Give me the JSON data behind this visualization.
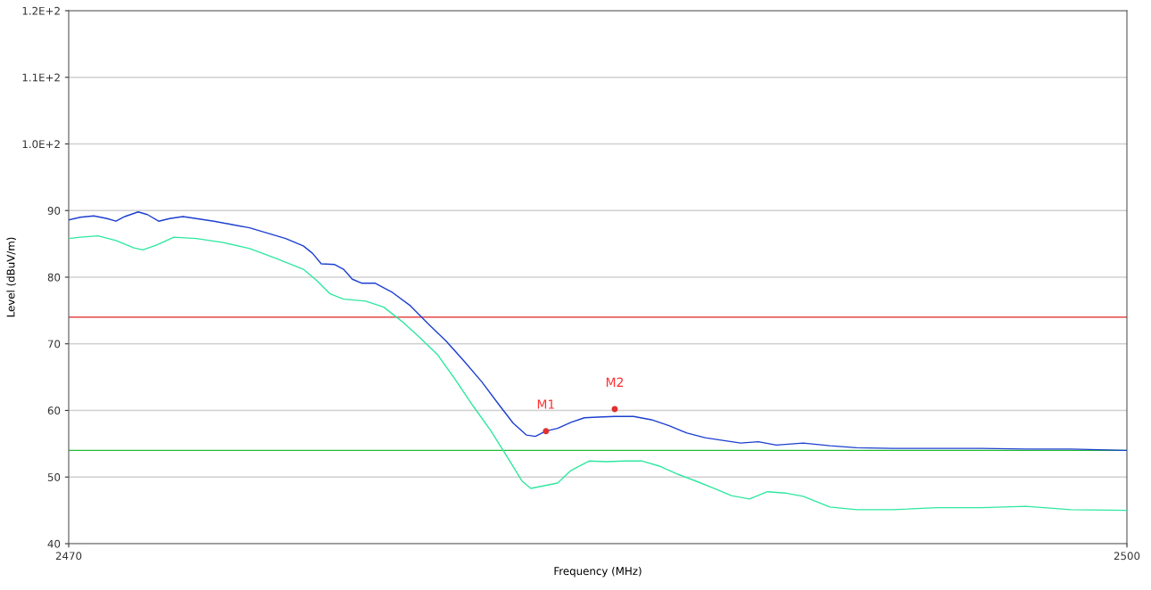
{
  "chart_data": {
    "type": "line",
    "xlabel": "Frequency (MHz)",
    "ylabel": "Level (dBuV/m)",
    "xlim": [
      2470,
      2500
    ],
    "xticks": [
      2470,
      2500
    ],
    "ylim": [
      40,
      120
    ],
    "yticks": [
      40,
      50,
      60,
      70,
      80,
      90,
      {
        "value": 100,
        "label": "1.0E+2"
      },
      {
        "value": 110,
        "label": "1.1E+2"
      },
      {
        "value": 120,
        "label": "1.2E+2"
      }
    ],
    "grid": "y",
    "legend": false,
    "line_style": "solid",
    "marker": "none",
    "series": [
      {
        "color": "#1c3fcf",
        "x": [
          2470,
          2470.33,
          2470.71,
          2471.09,
          2471.34,
          2471.59,
          2471.97,
          2472.23,
          2472.55,
          2472.86,
          2473.24,
          2473.62,
          2474.12,
          2474.63,
          2475.13,
          2475.64,
          2476.15,
          2476.65,
          2476.91,
          2477.16,
          2477.54,
          2477.79,
          2478.04,
          2478.3,
          2478.68,
          2479.18,
          2479.69,
          2480.19,
          2480.7,
          2481.21,
          2481.71,
          2482.22,
          2482.6,
          2482.98,
          2483.23,
          2483.53,
          2483.86,
          2484.24,
          2484.62,
          2485.0,
          2485.48,
          2486.01,
          2486.52,
          2487.02,
          2487.53,
          2488.04,
          2488.54,
          2489.05,
          2489.55,
          2490.06,
          2490.82,
          2491.58,
          2492.34,
          2493.35,
          2494.61,
          2495.88,
          2497.14,
          2498.41,
          2500
        ],
        "values": [
          88.6,
          89.0,
          89.2,
          88.8,
          88.4,
          89.1,
          89.8,
          89.4,
          88.4,
          88.8,
          89.1,
          88.8,
          88.4,
          87.9,
          87.4,
          86.6,
          85.8,
          84.7,
          83.6,
          82.0,
          81.9,
          81.2,
          79.7,
          79.1,
          79.1,
          77.7,
          75.7,
          73.0,
          70.4,
          67.4,
          64.3,
          60.7,
          58.1,
          56.3,
          56.1,
          56.9,
          57.3,
          58.2,
          58.9,
          59.0,
          59.1,
          59.1,
          58.6,
          57.7,
          56.6,
          55.9,
          55.5,
          55.1,
          55.3,
          54.8,
          55.1,
          54.7,
          54.4,
          54.3,
          54.3,
          54.3,
          54.2,
          54.2,
          54.0
        ]
      },
      {
        "color": "#2ee8a0",
        "x": [
          2470,
          2470.33,
          2470.83,
          2471.34,
          2471.85,
          2472.1,
          2472.48,
          2472.98,
          2473.62,
          2474.38,
          2475.13,
          2475.89,
          2476.65,
          2477.03,
          2477.41,
          2477.79,
          2478.42,
          2478.93,
          2479.44,
          2479.94,
          2480.45,
          2480.95,
          2481.46,
          2481.96,
          2482.47,
          2482.85,
          2483.1,
          2483.48,
          2483.86,
          2484.24,
          2484.75,
          2485.25,
          2485.76,
          2486.26,
          2486.77,
          2487.28,
          2487.78,
          2488.29,
          2488.79,
          2489.3,
          2489.81,
          2490.31,
          2490.82,
          2491.58,
          2492.34,
          2493.35,
          2494.61,
          2495.88,
          2497.14,
          2498.41,
          2500
        ],
        "values": [
          85.8,
          86.0,
          86.2,
          85.5,
          84.4,
          84.1,
          84.8,
          86.0,
          85.8,
          85.2,
          84.3,
          82.8,
          81.2,
          79.5,
          77.5,
          76.7,
          76.4,
          75.5,
          73.4,
          71.0,
          68.4,
          64.7,
          60.7,
          57.0,
          52.7,
          49.4,
          48.3,
          48.7,
          49.1,
          51.0,
          52.4,
          52.3,
          52.4,
          52.4,
          51.6,
          50.4,
          49.4,
          48.3,
          47.2,
          46.7,
          47.8,
          47.6,
          47.1,
          45.5,
          45.1,
          45.1,
          45.4,
          45.4,
          45.6,
          45.1,
          45.0
        ]
      }
    ],
    "ref_lines": [
      {
        "axis": "y",
        "value": 74,
        "color": "#e02020",
        "line_style": "solid"
      },
      {
        "axis": "y",
        "value": 54,
        "color": "#22bb33",
        "line_style": "solid"
      }
    ],
    "annotations": [
      {
        "text": "M1",
        "x": 2483.53,
        "y": 56.9
      },
      {
        "text": "M2",
        "x": 2485.48,
        "y": 60.2
      }
    ]
  }
}
